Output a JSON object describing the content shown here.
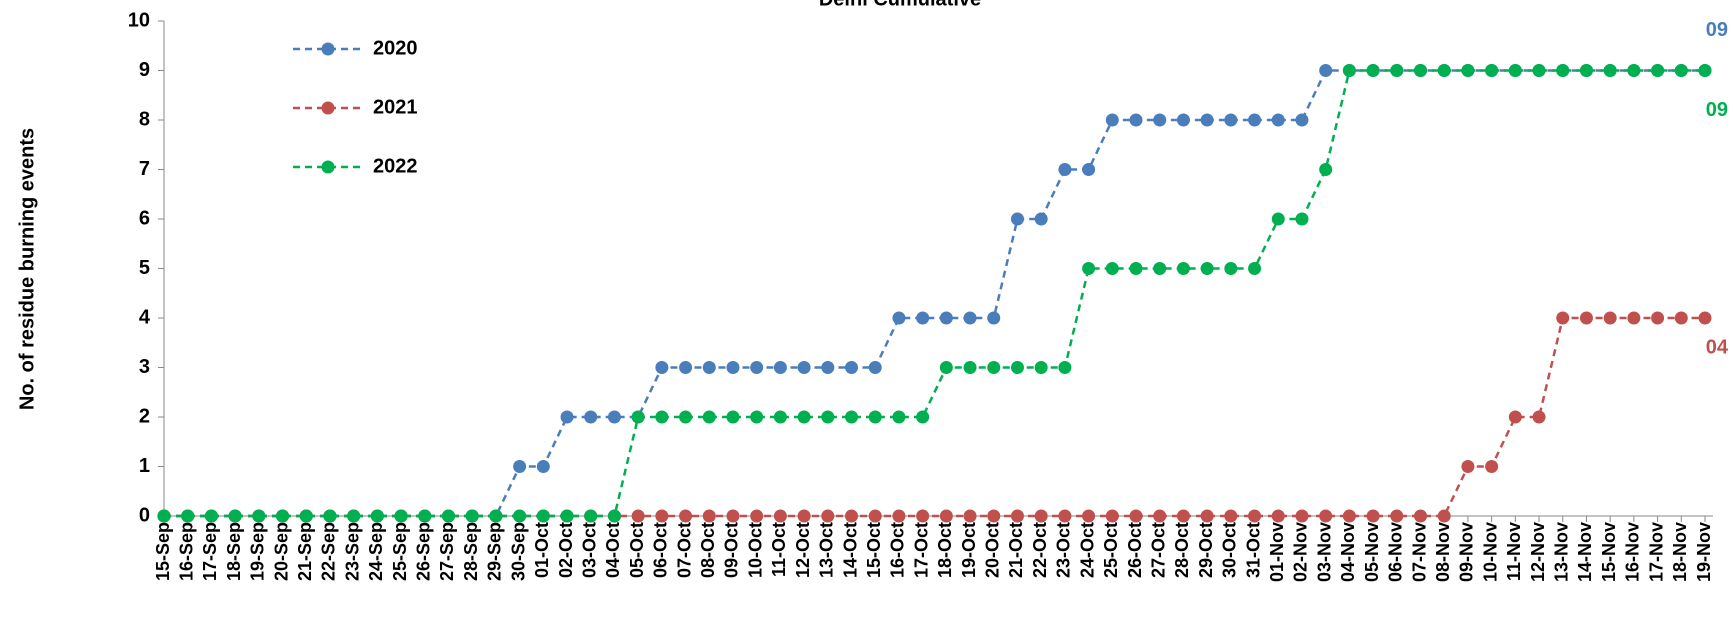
{
  "chart_data": {
    "type": "line",
    "title": "Delhi Cumulative",
    "y_label": "No. of residue burning events",
    "categories": [
      "15-Sep",
      "16-Sep",
      "17-Sep",
      "18-Sep",
      "19-Sep",
      "20-Sep",
      "21-Sep",
      "22-Sep",
      "23-Sep",
      "24-Sep",
      "25-Sep",
      "26-Sep",
      "27-Sep",
      "28-Sep",
      "29-Sep",
      "30-Sep",
      "01-Oct",
      "02-Oct",
      "03-Oct",
      "04-Oct",
      "05-Oct",
      "06-Oct",
      "07-Oct",
      "08-Oct",
      "09-Oct",
      "10-Oct",
      "11-Oct",
      "12-Oct",
      "13-Oct",
      "14-Oct",
      "15-Oct",
      "16-Oct",
      "17-Oct",
      "18-Oct",
      "19-Oct",
      "20-Oct",
      "21-Oct",
      "22-Oct",
      "23-Oct",
      "24-Oct",
      "25-Oct",
      "26-Oct",
      "27-Oct",
      "28-Oct",
      "29-Oct",
      "30-Oct",
      "31-Oct",
      "01-Nov",
      "02-Nov",
      "03-Nov",
      "04-Nov",
      "05-Nov",
      "06-Nov",
      "07-Nov",
      "08-Nov",
      "09-Nov",
      "10-Nov",
      "11-Nov",
      "12-Nov",
      "13-Nov",
      "14-Nov",
      "15-Nov",
      "16-Nov",
      "17-Nov",
      "18-Nov",
      "19-Nov"
    ],
    "series": [
      {
        "name": "2020",
        "color": "#4a7ebb",
        "end_label": "09",
        "values": [
          0,
          0,
          0,
          0,
          0,
          0,
          0,
          0,
          0,
          0,
          0,
          0,
          0,
          0,
          0,
          1,
          1,
          2,
          2,
          2,
          2,
          3,
          3,
          3,
          3,
          3,
          3,
          3,
          3,
          3,
          3,
          4,
          4,
          4,
          4,
          4,
          6,
          6,
          7,
          7,
          8,
          8,
          8,
          8,
          8,
          8,
          8,
          8,
          8,
          9,
          9,
          9,
          9,
          9,
          9,
          9,
          9,
          9,
          9,
          9,
          9,
          9,
          9,
          9,
          9,
          9
        ]
      },
      {
        "name": "2021",
        "color": "#c0504d",
        "end_label": "04",
        "values": [
          0,
          0,
          0,
          0,
          0,
          0,
          0,
          0,
          0,
          0,
          0,
          0,
          0,
          0,
          0,
          0,
          0,
          0,
          0,
          0,
          0,
          0,
          0,
          0,
          0,
          0,
          0,
          0,
          0,
          0,
          0,
          0,
          0,
          0,
          0,
          0,
          0,
          0,
          0,
          0,
          0,
          0,
          0,
          0,
          0,
          0,
          0,
          0,
          0,
          0,
          0,
          0,
          0,
          0,
          0,
          1,
          1,
          2,
          2,
          4,
          4,
          4,
          4,
          4,
          4,
          4
        ]
      },
      {
        "name": "2022",
        "color": "#00b050",
        "end_label": "09",
        "values": [
          0,
          0,
          0,
          0,
          0,
          0,
          0,
          0,
          0,
          0,
          0,
          0,
          0,
          0,
          0,
          0,
          0,
          0,
          0,
          0,
          2,
          2,
          2,
          2,
          2,
          2,
          2,
          2,
          2,
          2,
          2,
          2,
          2,
          3,
          3,
          3,
          3,
          3,
          3,
          5,
          5,
          5,
          5,
          5,
          5,
          5,
          5,
          6,
          6,
          7,
          9,
          9,
          9,
          9,
          9,
          9,
          9,
          9,
          9,
          9,
          9,
          9,
          9,
          9,
          9,
          9
        ]
      }
    ],
    "ylim": [
      0,
      10
    ],
    "yticks": [
      0,
      1,
      2,
      3,
      4,
      5,
      6,
      7,
      8,
      9,
      10
    ]
  }
}
